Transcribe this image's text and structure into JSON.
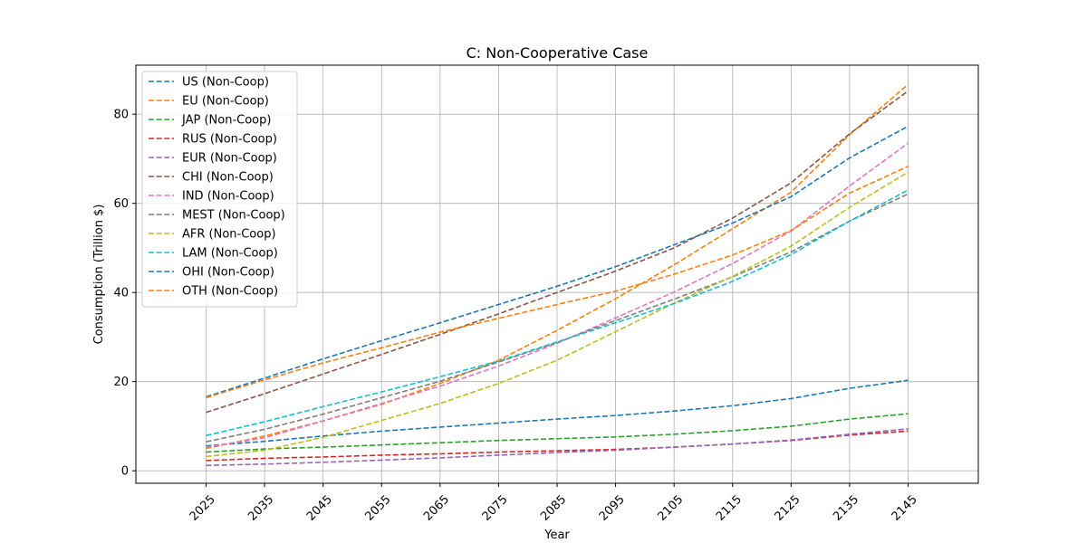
{
  "chart_data": {
    "type": "line",
    "title": "C: Non-Cooperative Case",
    "xlabel": "Year",
    "ylabel": "Consumption (Trillion $)",
    "x": [
      2025,
      2035,
      2045,
      2055,
      2065,
      2075,
      2085,
      2095,
      2105,
      2115,
      2125,
      2135,
      2145
    ],
    "xticks": [
      "2025",
      "2035",
      "2045",
      "2055",
      "2065",
      "2075",
      "2085",
      "2095",
      "2105",
      "2115",
      "2125",
      "2135",
      "2145"
    ],
    "yticks": [
      0,
      20,
      40,
      60,
      80
    ],
    "xlim": [
      2013,
      2157
    ],
    "ylim": [
      -2.8,
      91
    ],
    "grid": true,
    "legend_position": "upper-left",
    "line_style": "dashed",
    "series": [
      {
        "name": "US (Non-Coop)",
        "color": "#1f77b4",
        "values": [
          5.6,
          6.6,
          7.8,
          8.9,
          9.8,
          10.7,
          11.6,
          12.4,
          13.4,
          14.6,
          16.2,
          18.5,
          20.3
        ]
      },
      {
        "name": "EU (Non-Coop)",
        "color": "#ff7f0e",
        "values": [
          5.0,
          7.8,
          11.2,
          14.9,
          19.6,
          24.8,
          31.5,
          38.6,
          46.2,
          54.3,
          62.5,
          75.4,
          86.7
        ]
      },
      {
        "name": "JAP (Non-Coop)",
        "color": "#2ca02c",
        "values": [
          4.2,
          4.9,
          5.3,
          5.8,
          6.3,
          6.8,
          7.2,
          7.6,
          8.2,
          9.0,
          10.0,
          11.6,
          12.8
        ]
      },
      {
        "name": "RUS (Non-Coop)",
        "color": "#d62728",
        "values": [
          2.3,
          2.8,
          3.1,
          3.5,
          3.8,
          4.2,
          4.5,
          4.8,
          5.3,
          6.0,
          6.8,
          8.0,
          8.9
        ]
      },
      {
        "name": "EUR (Non-Coop)",
        "color": "#9467bd",
        "values": [
          1.2,
          1.5,
          1.9,
          2.4,
          2.9,
          3.5,
          4.1,
          4.6,
          5.3,
          6.0,
          6.9,
          8.2,
          9.4
        ]
      },
      {
        "name": "CHI (Non-Coop)",
        "color": "#8c564b",
        "values": [
          13.1,
          17.3,
          21.7,
          26.1,
          30.6,
          35.2,
          40.0,
          44.8,
          50.0,
          56.7,
          64.6,
          75.6,
          85.2
        ]
      },
      {
        "name": "IND (Non-Coop)",
        "color": "#e377c2",
        "values": [
          5.3,
          7.4,
          11.2,
          15.1,
          19.0,
          23.5,
          28.6,
          34.3,
          40.1,
          46.5,
          53.8,
          63.9,
          73.5
        ]
      },
      {
        "name": "MEST (Non-Coop)",
        "color": "#7f7f7f",
        "values": [
          6.5,
          9.3,
          12.7,
          16.4,
          20.1,
          24.4,
          28.8,
          33.7,
          38.5,
          43.5,
          49.1,
          56.0,
          62.1
        ]
      },
      {
        "name": "AFR (Non-Coop)",
        "color": "#bcbd22",
        "values": [
          3.2,
          4.6,
          7.5,
          11.3,
          15.1,
          19.6,
          24.8,
          31.2,
          37.6,
          43.6,
          50.4,
          59.1,
          67.0
        ]
      },
      {
        "name": "LAM (Non-Coop)",
        "color": "#17becf",
        "values": [
          7.9,
          11.0,
          14.4,
          17.7,
          21.1,
          24.6,
          28.9,
          33.2,
          37.5,
          42.5,
          48.5,
          56.0,
          63.0
        ]
      },
      {
        "name": "OHI (Non-Coop)",
        "color": "#1f77b4",
        "values": [
          16.6,
          20.8,
          25.1,
          29.2,
          33.2,
          37.3,
          41.4,
          45.8,
          50.7,
          55.6,
          61.5,
          70.2,
          77.3
        ]
      },
      {
        "name": "OTH (Non-Coop)",
        "color": "#ff7f0e",
        "values": [
          16.4,
          20.4,
          24.2,
          27.6,
          31.1,
          34.2,
          37.3,
          40.3,
          44.1,
          48.4,
          53.9,
          62.3,
          68.3
        ]
      }
    ]
  }
}
